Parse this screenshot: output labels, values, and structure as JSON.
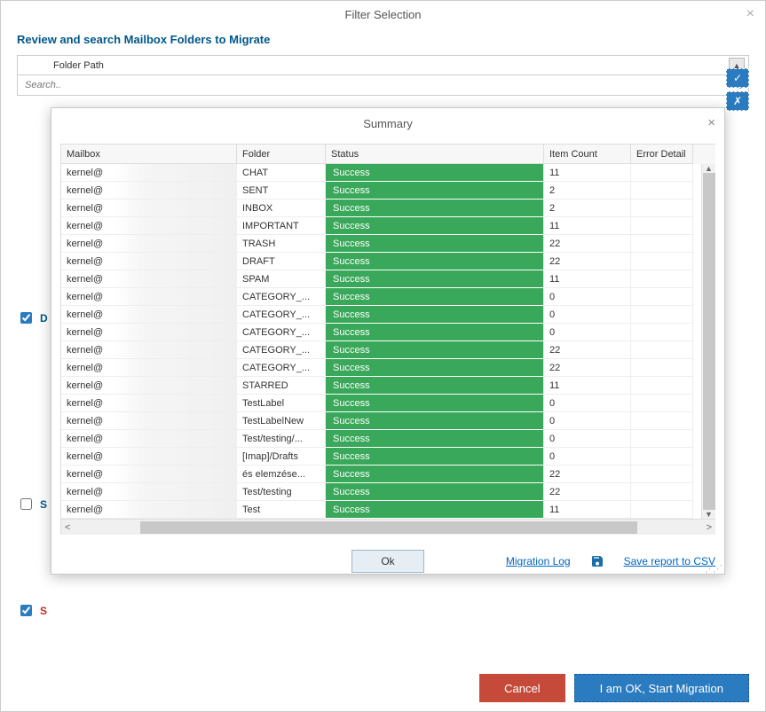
{
  "main": {
    "title": "Filter Selection",
    "section_header": "Review and search Mailbox Folders to Migrate",
    "folder_column_header": "Folder Path",
    "search_placeholder": "Search..",
    "cancel_label": "Cancel",
    "start_label": "I am OK, Start Migration",
    "checkbox_D": "D",
    "checkbox_S": "S"
  },
  "summary": {
    "title": "Summary",
    "columns": {
      "mailbox": "Mailbox",
      "folder": "Folder",
      "status": "Status",
      "item_count": "Item Count",
      "error": "Error Detail"
    },
    "ok_label": "Ok",
    "migration_log": "Migration Log",
    "save_csv": "Save report to CSV",
    "status_success": "Success",
    "status_bg": "#3aa85a",
    "rows": [
      {
        "mailbox": "kernel@",
        "folder": "CHAT",
        "count": "11"
      },
      {
        "mailbox": "kernel@",
        "folder": "SENT",
        "count": "2"
      },
      {
        "mailbox": "kernel@",
        "folder": "INBOX",
        "count": "2"
      },
      {
        "mailbox": "kernel@",
        "folder": "IMPORTANT",
        "count": "11"
      },
      {
        "mailbox": "kernel@",
        "folder": "TRASH",
        "count": "22"
      },
      {
        "mailbox": "kernel@",
        "folder": "DRAFT",
        "count": "22"
      },
      {
        "mailbox": "kernel@",
        "folder": "SPAM",
        "count": "11"
      },
      {
        "mailbox": "kernel@",
        "folder": "CATEGORY_...",
        "count": "0"
      },
      {
        "mailbox": "kernel@",
        "folder": "CATEGORY_...",
        "count": "0"
      },
      {
        "mailbox": "kernel@",
        "folder": "CATEGORY_...",
        "count": "0"
      },
      {
        "mailbox": "kernel@",
        "folder": "CATEGORY_...",
        "count": "22"
      },
      {
        "mailbox": "kernel@",
        "folder": "CATEGORY_...",
        "count": "22"
      },
      {
        "mailbox": "kernel@",
        "folder": "STARRED",
        "count": "11"
      },
      {
        "mailbox": "kernel@",
        "folder": "TestLabel",
        "count": "0"
      },
      {
        "mailbox": "kernel@",
        "folder": "TestLabelNew",
        "count": "0"
      },
      {
        "mailbox": "kernel@",
        "folder": "Test/testing/...",
        "count": "0"
      },
      {
        "mailbox": "kernel@",
        "folder": "[Imap]/Drafts",
        "count": "0"
      },
      {
        "mailbox": "kernel@",
        "folder": "és elemzése...",
        "count": "22"
      },
      {
        "mailbox": "kernel@",
        "folder": "Test/testing",
        "count": "22"
      },
      {
        "mailbox": "kernel@",
        "folder": "Test",
        "count": "11"
      }
    ]
  },
  "colors": {
    "accent_blue": "#2a7bc0",
    "header_blue": "#00578a",
    "cancel_red": "#c54a3a",
    "link_blue": "#0066c0"
  }
}
